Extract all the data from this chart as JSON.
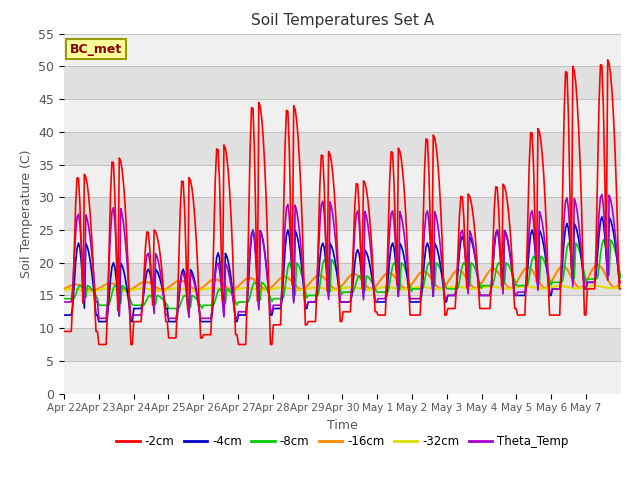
{
  "title": "Soil Temperatures Set A",
  "xlabel": "Time",
  "ylabel": "Soil Temperature (C)",
  "ylim": [
    0,
    55
  ],
  "yticks": [
    0,
    5,
    10,
    15,
    20,
    25,
    30,
    35,
    40,
    45,
    50,
    55
  ],
  "annotation": "BC_met",
  "series_colors": {
    "-2cm": "#ff0000",
    "-4cm": "#0000cc",
    "-8cm": "#00cc00",
    "-16cm": "#ff8800",
    "-32cm": "#dddd00",
    "Theta_Temp": "#aa00cc"
  },
  "legend_labels": [
    "-2cm",
    "-4cm",
    "-8cm",
    "-16cm",
    "-32cm",
    "Theta_Temp"
  ],
  "n_days": 16,
  "x_tick_labels": [
    "Apr 22",
    "Apr 23",
    "Apr 24",
    "Apr 25",
    "Apr 26",
    "Apr 27",
    "Apr 28",
    "Apr 29",
    "Apr 30",
    "May 1",
    "May 2",
    "May 3",
    "May 4",
    "May 5",
    "May 6",
    "May 7"
  ],
  "band_colors": [
    "#f0f0f0",
    "#e0e0e0"
  ],
  "red_peaks": [
    33.5,
    36.0,
    25.0,
    33.0,
    38.0,
    44.5,
    44.0,
    37.0,
    32.5,
    37.5,
    39.5,
    30.5,
    32.0,
    40.5,
    50.0,
    51.0
  ],
  "red_mins": [
    9.5,
    7.5,
    11.0,
    8.5,
    9.0,
    7.5,
    10.5,
    11.0,
    12.5,
    12.0,
    12.0,
    13.0,
    13.0,
    12.0,
    12.0,
    16.0
  ],
  "blue_peaks": [
    23.0,
    20.0,
    19.0,
    19.0,
    21.5,
    25.0,
    25.0,
    23.0,
    22.0,
    23.0,
    23.0,
    24.0,
    25.0,
    25.0,
    26.0,
    27.0
  ],
  "blue_mins": [
    12.0,
    11.0,
    13.0,
    11.0,
    11.0,
    12.0,
    13.0,
    14.0,
    14.0,
    14.0,
    14.0,
    15.0,
    15.0,
    15.0,
    16.0,
    17.0
  ],
  "green_peaks": [
    16.5,
    16.5,
    15.0,
    15.0,
    16.0,
    17.0,
    20.0,
    20.5,
    18.0,
    20.0,
    20.0,
    20.0,
    20.0,
    21.0,
    23.0,
    23.5
  ],
  "green_mins": [
    14.5,
    13.5,
    13.5,
    13.0,
    13.5,
    14.0,
    14.5,
    15.0,
    15.5,
    15.5,
    16.0,
    16.0,
    16.5,
    16.5,
    17.0,
    17.5
  ],
  "purple_peaks": [
    27.5,
    28.5,
    21.5,
    18.5,
    20.0,
    25.0,
    29.0,
    29.5,
    28.0,
    28.0,
    28.0,
    25.0,
    25.0,
    28.0,
    30.0,
    30.5
  ],
  "purple_mins": [
    14.0,
    11.5,
    12.0,
    11.5,
    11.5,
    12.5,
    13.5,
    14.0,
    14.0,
    14.5,
    14.5,
    15.0,
    15.0,
    15.5,
    16.0,
    17.0
  ]
}
